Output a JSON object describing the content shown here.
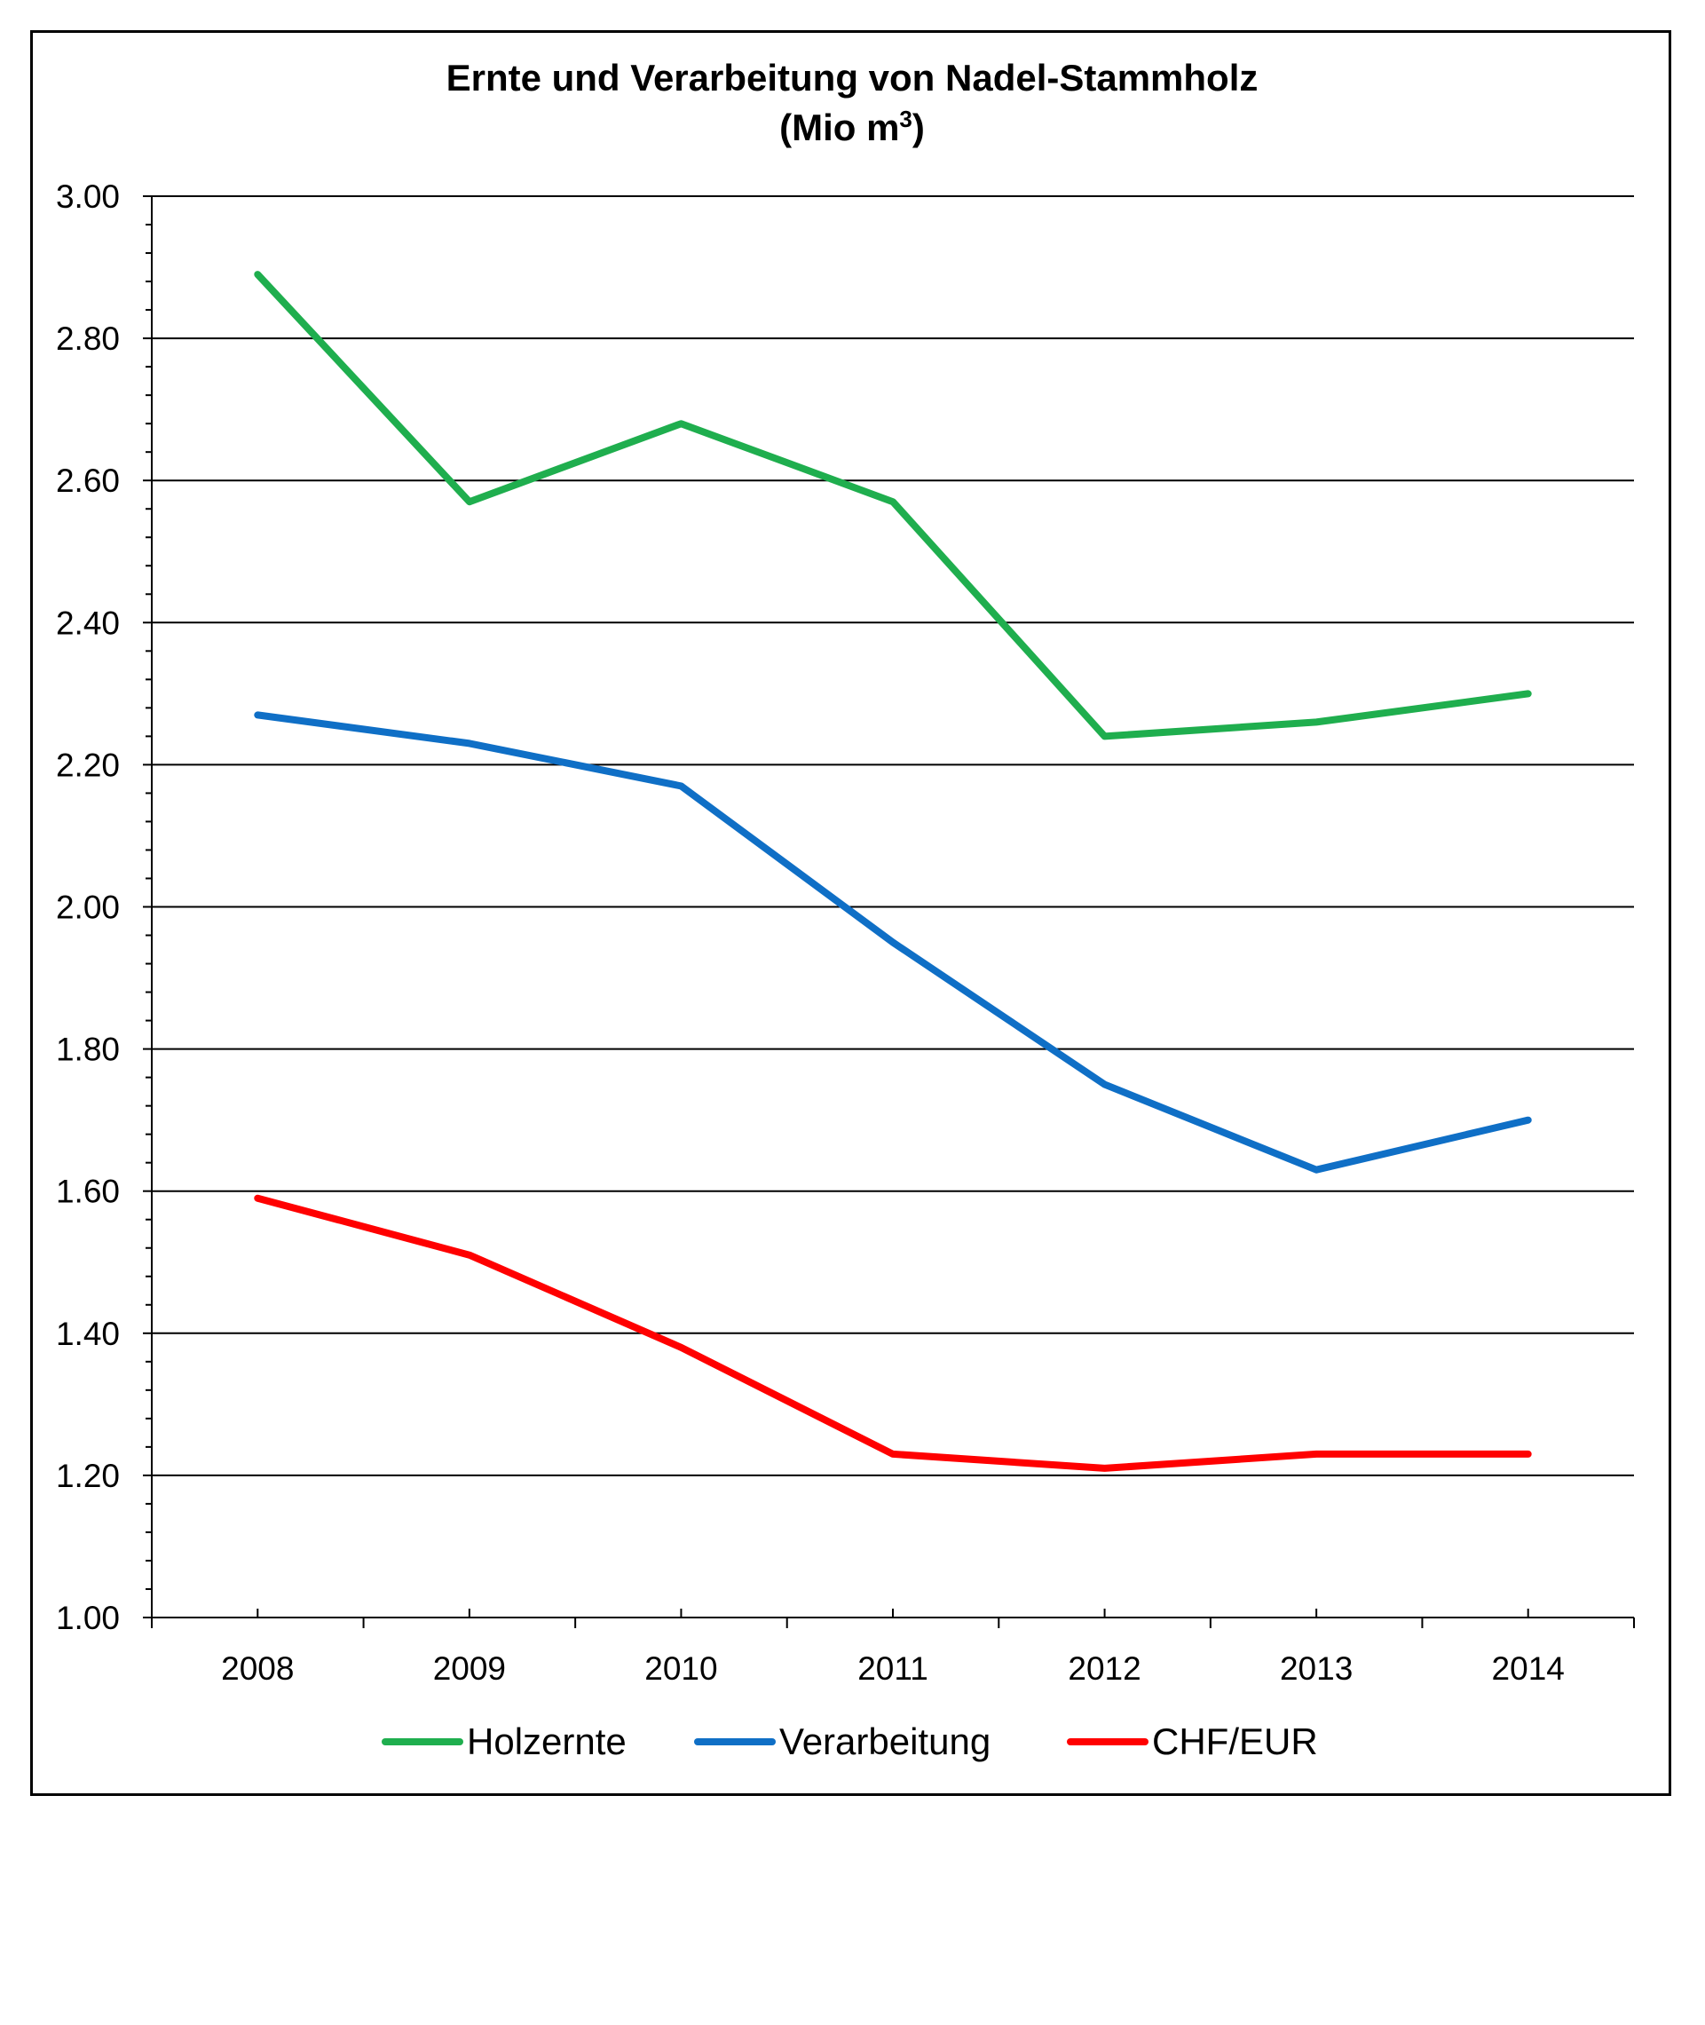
{
  "chart_data": {
    "type": "line",
    "title": "Ernte und Verarbeitung von Nadel-Stammholz",
    "subtitle_prefix": "(Mio m",
    "subtitle_superscript": "3",
    "subtitle_suffix": ")",
    "xlabel": "",
    "ylabel": "",
    "x": [
      "2008",
      "2009",
      "2010",
      "2011",
      "2012",
      "2013",
      "2014"
    ],
    "ylim": [
      1.0,
      3.0
    ],
    "yticks": [
      1.0,
      1.2,
      1.4,
      1.6,
      1.8,
      2.0,
      2.2,
      2.4,
      2.6,
      2.8,
      3.0
    ],
    "ytick_labels": [
      "1.00",
      "1.20",
      "1.40",
      "1.60",
      "1.80",
      "2.00",
      "2.20",
      "2.40",
      "2.60",
      "2.80",
      "3.00"
    ],
    "grid": true,
    "legend_position": "bottom",
    "series": [
      {
        "name": "Holzernte",
        "color": "#1fae4e",
        "values": [
          2.89,
          2.57,
          2.68,
          2.57,
          2.24,
          2.26,
          2.3
        ]
      },
      {
        "name": "Verarbeitung",
        "color": "#0f6fc6",
        "values": [
          2.27,
          2.23,
          2.17,
          1.95,
          1.75,
          1.63,
          1.7
        ]
      },
      {
        "name": "CHF/EUR",
        "color": "#ff0000",
        "values": [
          1.59,
          1.51,
          1.38,
          1.23,
          1.21,
          1.23,
          1.23
        ]
      }
    ]
  }
}
